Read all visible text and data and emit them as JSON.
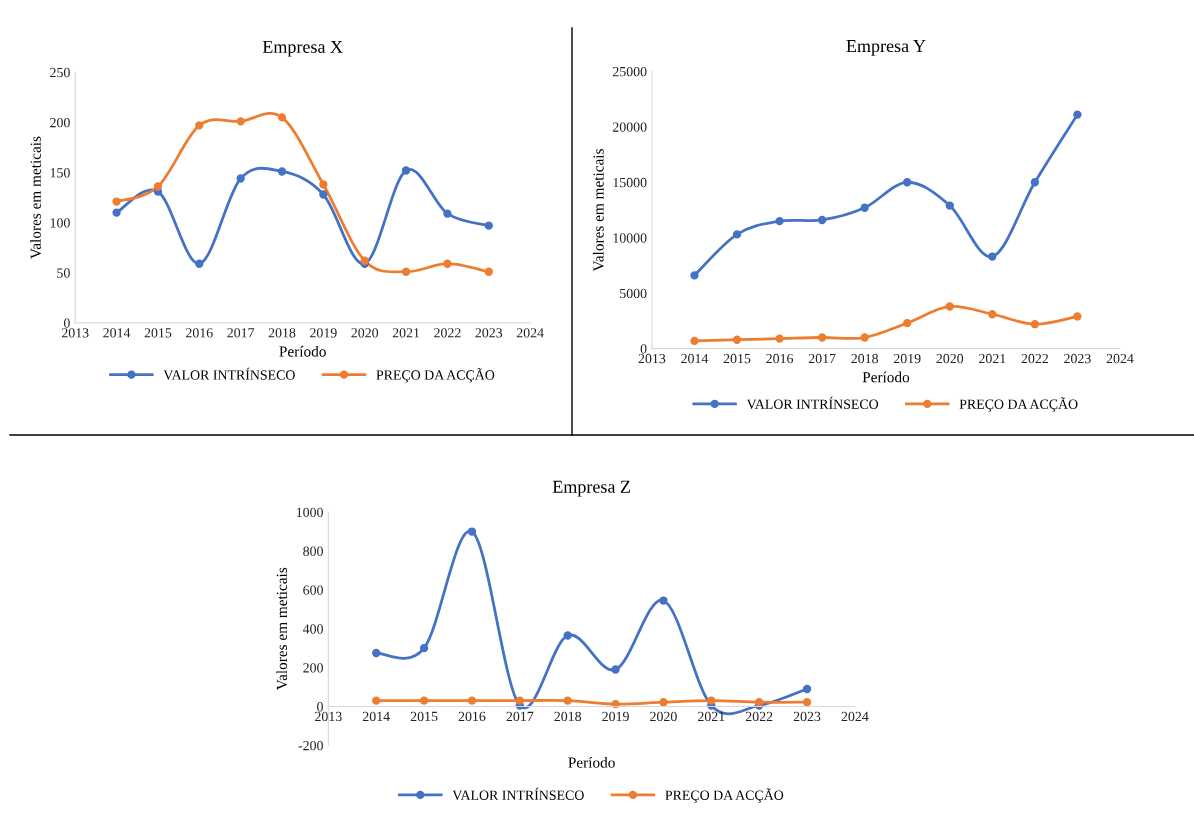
{
  "chart_data": [
    {
      "type": "line",
      "title": "Empresa X",
      "xlabel": "Período",
      "ylabel": "Valores em meticais",
      "x": [
        2014,
        2015,
        2016,
        2017,
        2018,
        2019,
        2020,
        2021,
        2022,
        2023
      ],
      "xlim": [
        2013,
        2024
      ],
      "xticks": [
        2013,
        2014,
        2015,
        2016,
        2017,
        2018,
        2019,
        2020,
        2021,
        2022,
        2023,
        2024
      ],
      "ylim": [
        0,
        250
      ],
      "yticks": [
        0,
        50,
        100,
        150,
        200,
        250
      ],
      "grid": false,
      "legend": "bottom",
      "marker": "circle",
      "line_style": "solid",
      "series": [
        {
          "name": "VALOR INTRÍNSECO",
          "color": "#4472c4",
          "values": [
            110,
            131,
            59,
            144,
            151,
            128,
            59,
            152,
            109,
            97
          ]
        },
        {
          "name": "PREÇO DA ACÇÃO",
          "color": "#ed7d31",
          "values": [
            121,
            136,
            197,
            201,
            205,
            138,
            62,
            51,
            59,
            51
          ]
        }
      ]
    },
    {
      "type": "line",
      "title": "Empresa Y",
      "xlabel": "Período",
      "ylabel": "Valores em meticais",
      "x": [
        2014,
        2015,
        2016,
        2017,
        2018,
        2019,
        2020,
        2021,
        2022,
        2023
      ],
      "xlim": [
        2013,
        2024
      ],
      "xticks": [
        2013,
        2014,
        2015,
        2016,
        2017,
        2018,
        2019,
        2020,
        2021,
        2022,
        2023,
        2024
      ],
      "ylim": [
        0,
        25000
      ],
      "yticks": [
        0,
        5000,
        10000,
        15000,
        20000,
        25000
      ],
      "grid": false,
      "legend": "bottom",
      "marker": "circle",
      "line_style": "solid",
      "series": [
        {
          "name": "VALOR INTRÍNSECO",
          "color": "#4472c4",
          "values": [
            6600,
            10300,
            11500,
            11600,
            12700,
            15000,
            12900,
            8300,
            15000,
            21100
          ]
        },
        {
          "name": "PREÇO DA ACÇÃO",
          "color": "#ed7d31",
          "values": [
            700,
            800,
            900,
            1000,
            1000,
            2300,
            3800,
            3100,
            2200,
            2900
          ]
        }
      ]
    },
    {
      "type": "line",
      "title": "Empresa Z",
      "xlabel": "Período",
      "ylabel": "Valores em meticais",
      "x": [
        2014,
        2015,
        2016,
        2017,
        2018,
        2019,
        2020,
        2021,
        2022,
        2023
      ],
      "xlim": [
        2013,
        2024
      ],
      "xticks": [
        2013,
        2014,
        2015,
        2016,
        2017,
        2018,
        2019,
        2020,
        2021,
        2022,
        2023,
        2024
      ],
      "ylim": [
        -200,
        1000
      ],
      "yticks": [
        -200,
        0,
        200,
        400,
        600,
        800,
        1000
      ],
      "grid": false,
      "legend": "bottom",
      "marker": "circle",
      "line_style": "solid",
      "series": [
        {
          "name": "VALOR INTRÍNSECO",
          "color": "#4472c4",
          "values": [
            275,
            300,
            900,
            5,
            365,
            190,
            545,
            5,
            5,
            90
          ]
        },
        {
          "name": "PREÇO DA ACÇÃO",
          "color": "#ed7d31",
          "values": [
            30,
            30,
            30,
            30,
            30,
            12,
            22,
            30,
            22,
            22
          ]
        }
      ]
    }
  ]
}
